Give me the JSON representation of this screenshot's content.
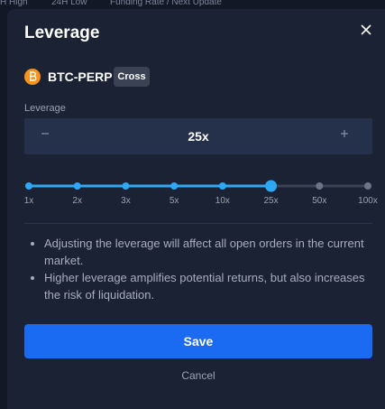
{
  "background": {
    "headers": [
      "H High",
      "24H Low",
      "Funding Rate / Next Update"
    ]
  },
  "modal": {
    "title": "Leverage",
    "asset": {
      "symbol": "BTC-PERP",
      "mode": "Cross"
    },
    "leverage": {
      "label": "Leverage",
      "value": "25x"
    },
    "slider": {
      "stops": [
        "1x",
        "2x",
        "3x",
        "5x",
        "10x",
        "25x",
        "50x",
        "100x"
      ]
    },
    "notes": [
      "Adjusting the leverage will affect all open orders in the current market.",
      "Higher leverage amplifies potential returns, but also increases the risk of liquidation."
    ],
    "buttons": {
      "save": "Save",
      "cancel": "Cancel"
    }
  }
}
